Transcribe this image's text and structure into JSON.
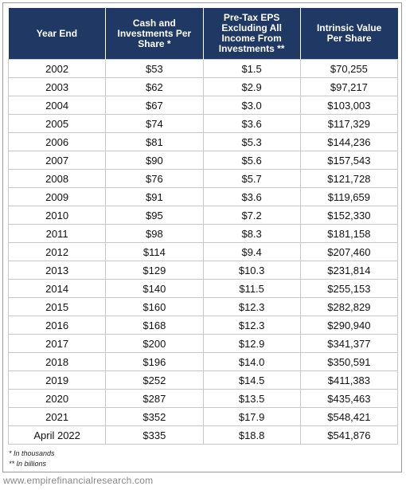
{
  "table": {
    "headers": [
      "Year End",
      "Cash and Investments Per Share *",
      "Pre-Tax EPS Excluding All Income From Investments **",
      "Intrinsic Value Per Share"
    ],
    "rows": [
      [
        "2002",
        "$53",
        "$1.5",
        "$70,255"
      ],
      [
        "2003",
        "$62",
        "$2.9",
        "$97,217"
      ],
      [
        "2004",
        "$67",
        "$3.0",
        "$103,003"
      ],
      [
        "2005",
        "$74",
        "$3.6",
        "$117,329"
      ],
      [
        "2006",
        "$81",
        "$5.3",
        "$144,236"
      ],
      [
        "2007",
        "$90",
        "$5.6",
        "$157,543"
      ],
      [
        "2008",
        "$76",
        "$5.7",
        "$121,728"
      ],
      [
        "2009",
        "$91",
        "$3.6",
        "$119,659"
      ],
      [
        "2010",
        "$95",
        "$7.2",
        "$152,330"
      ],
      [
        "2011",
        "$98",
        "$8.3",
        "$181,158"
      ],
      [
        "2012",
        "$114",
        "$9.4",
        "$207,460"
      ],
      [
        "2013",
        "$129",
        "$10.3",
        "$231,814"
      ],
      [
        "2014",
        "$140",
        "$11.5",
        "$255,153"
      ],
      [
        "2015",
        "$160",
        "$12.3",
        "$282,829"
      ],
      [
        "2016",
        "$168",
        "$12.3",
        "$290,940"
      ],
      [
        "2017",
        "$200",
        "$12.9",
        "$341,377"
      ],
      [
        "2018",
        "$196",
        "$14.0",
        "$350,591"
      ],
      [
        "2019",
        "$252",
        "$14.5",
        "$411,383"
      ],
      [
        "2020",
        "$287",
        "$13.5",
        "$435,463"
      ],
      [
        "2021",
        "$352",
        "$17.9",
        "$548,421"
      ],
      [
        "April 2022",
        "$335",
        "$18.8",
        "$541,876"
      ]
    ]
  },
  "footnotes": [
    "* In thousands",
    "** In billions"
  ],
  "source": "www.empirefinancialresearch.com"
}
